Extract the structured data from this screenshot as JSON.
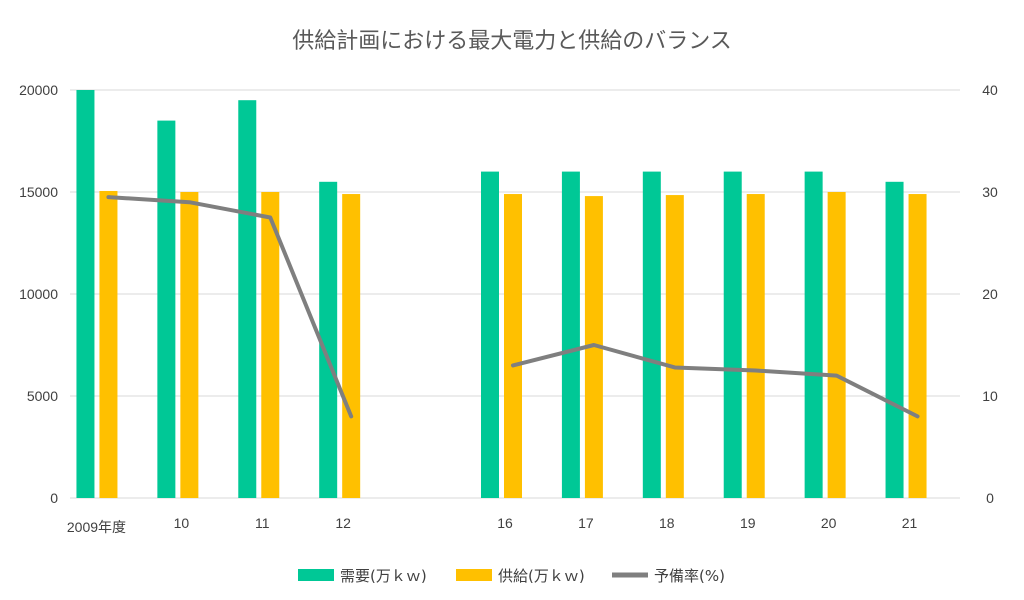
{
  "chart_data": {
    "type": "bar",
    "title": "供給計画における最大電力と供給のバランス",
    "categories": [
      "2009年度",
      "10",
      "11",
      "12",
      "",
      "16",
      "17",
      "18",
      "19",
      "20",
      "21"
    ],
    "y_left": {
      "ticks": [
        "0",
        "5000",
        "10000",
        "15000",
        "20000"
      ],
      "ylim": [
        0,
        20000
      ]
    },
    "y_right": {
      "ticks": [
        "0",
        "10",
        "20",
        "30",
        "40"
      ],
      "ylim": [
        0,
        40
      ]
    },
    "grid": true,
    "legend_position": "bottom",
    "series": [
      {
        "name": "需要(万ｋｗ)",
        "type": "bar",
        "axis": "left",
        "color": "#00c896",
        "values": [
          20000,
          18500,
          19500,
          15500,
          null,
          16000,
          16000,
          16000,
          16000,
          16000,
          15500
        ]
      },
      {
        "name": "供給(万ｋｗ)",
        "type": "bar",
        "axis": "left",
        "color": "#ffc000",
        "values": [
          15050,
          15000,
          15000,
          14900,
          null,
          14900,
          14800,
          14850,
          14900,
          15000,
          14900
        ]
      },
      {
        "name": "予備率(%)",
        "type": "line",
        "axis": "right",
        "color": "#7f7f7f",
        "values": [
          29.5,
          29,
          27.5,
          8,
          null,
          13,
          15,
          12.8,
          12.5,
          12,
          8
        ]
      }
    ]
  }
}
